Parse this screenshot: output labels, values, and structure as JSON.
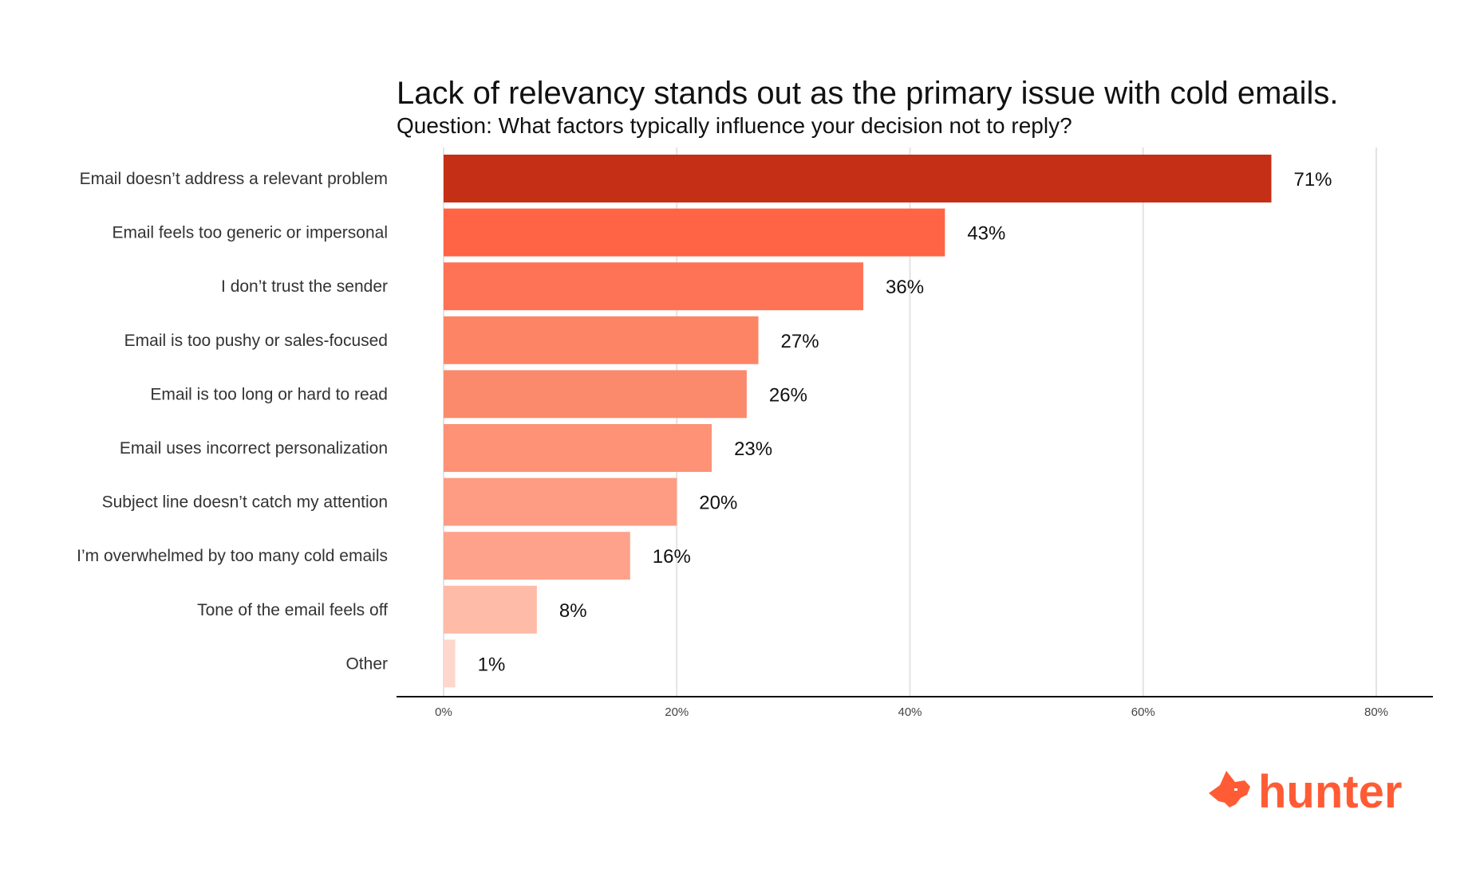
{
  "chart_data": {
    "type": "bar",
    "orientation": "horizontal",
    "title": "Lack of relevancy stands out as the primary issue with cold emails.",
    "subtitle": "Question: What factors typically influence your decision not to reply?",
    "categories": [
      "Email doesn’t address a relevant problem",
      "Email feels too generic or impersonal",
      "I don’t trust the sender",
      "Email is too pushy or sales-focused",
      "Email is too long or hard to read",
      "Email uses incorrect personalization",
      "Subject line doesn’t catch my attention",
      "I’m overwhelmed by too many cold emails",
      "Tone of the email feels off",
      "Other"
    ],
    "values": [
      71,
      43,
      36,
      27,
      26,
      23,
      20,
      16,
      8,
      1
    ],
    "value_labels": [
      "71%",
      "43%",
      "36%",
      "27%",
      "26%",
      "23%",
      "20%",
      "16%",
      "8%",
      "1%"
    ],
    "bar_colors": [
      "#c42f16",
      "#ff6444",
      "#fe7355",
      "#fd8566",
      "#fb8a6c",
      "#fd9277",
      "#fe9c83",
      "#fea28b",
      "#fdbba8",
      "#fdd7cc"
    ],
    "xlim": [
      0,
      80
    ],
    "xticks": [
      0,
      20,
      40,
      60,
      80
    ],
    "xtick_labels": [
      "0%",
      "20%",
      "40%",
      "60%",
      "80%"
    ],
    "xlabel": "",
    "ylabel": "",
    "grid": "vertical",
    "legend": "none"
  },
  "brand": {
    "name": "hunter",
    "color": "#ff5c35",
    "icon": "fox-head-icon"
  }
}
